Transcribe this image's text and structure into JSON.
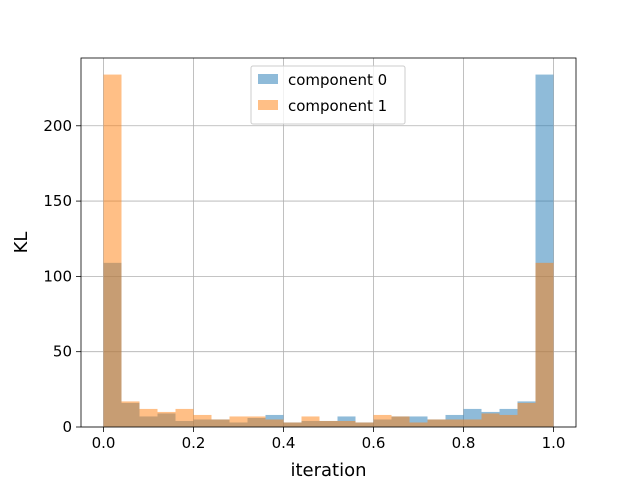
{
  "chart_data": {
    "type": "bar",
    "title": "",
    "xlabel": "iteration",
    "ylabel": "KL",
    "xlim": [
      -0.05,
      1.05
    ],
    "ylim": [
      0,
      245
    ],
    "xticks": [
      "0.0",
      "0.2",
      "0.4",
      "0.6",
      "0.8",
      "1.0"
    ],
    "yticks": [
      "0",
      "50",
      "100",
      "150",
      "200"
    ],
    "grid": true,
    "legend": "upper-center",
    "bin_edges": [
      0.0,
      0.04,
      0.08,
      0.12,
      0.16,
      0.2,
      0.24,
      0.28,
      0.32,
      0.36,
      0.4,
      0.44,
      0.48,
      0.52,
      0.56,
      0.6,
      0.64,
      0.68,
      0.72,
      0.76,
      0.8,
      0.84,
      0.88,
      0.92,
      0.96,
      1.0
    ],
    "series": [
      {
        "name": "component 0",
        "color": "#1f77b4",
        "values": [
          109,
          16,
          7,
          9,
          4,
          5,
          5,
          3,
          6,
          8,
          3,
          4,
          4,
          7,
          3,
          5,
          7,
          7,
          5,
          8,
          12,
          10,
          12,
          17,
          234
        ]
      },
      {
        "name": "component 1",
        "color": "#ff7f0e",
        "values": [
          234,
          17,
          12,
          10,
          12,
          8,
          5,
          7,
          7,
          5,
          3,
          7,
          4,
          4,
          3,
          8,
          7,
          3,
          5,
          5,
          5,
          9,
          8,
          16,
          109
        ]
      }
    ]
  }
}
